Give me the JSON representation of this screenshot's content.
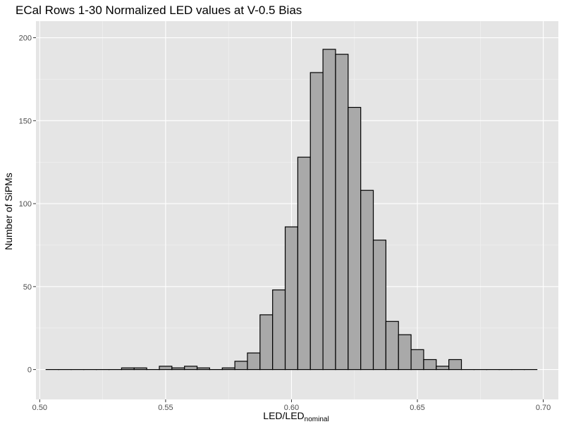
{
  "chart_data": {
    "type": "bar",
    "title": "ECal Rows 1-30 Normalized LED values at V-0.5 Bias",
    "xlabel": "LED/LED",
    "xlabel_subscript": "nominal",
    "ylabel": "Number of SiPMs",
    "xlim": [
      0.4985,
      0.706
    ],
    "ylim": [
      -18,
      210
    ],
    "x_ticks": [
      "0.50",
      "0.55",
      "0.60",
      "0.65",
      "0.70"
    ],
    "y_ticks": [
      "0",
      "50",
      "100",
      "150",
      "200"
    ],
    "grid": true,
    "legend": "none",
    "bin_width": 0.005,
    "bins_start": 0.5025,
    "values": [
      0,
      0,
      0,
      0,
      0,
      0,
      1,
      1,
      0,
      2,
      1,
      2,
      1,
      0,
      1,
      5,
      10,
      33,
      48,
      86,
      128,
      179,
      193,
      190,
      158,
      108,
      78,
      29,
      21,
      12,
      6,
      2,
      6,
      0,
      0,
      0,
      0,
      0,
      0
    ],
    "colors": {
      "panel": "#e5e5e5",
      "grid_major": "#ffffff",
      "bar_fill": "#a9a9a9",
      "bar_outline": "#000000",
      "tick_label": "#4d4d4d"
    }
  }
}
